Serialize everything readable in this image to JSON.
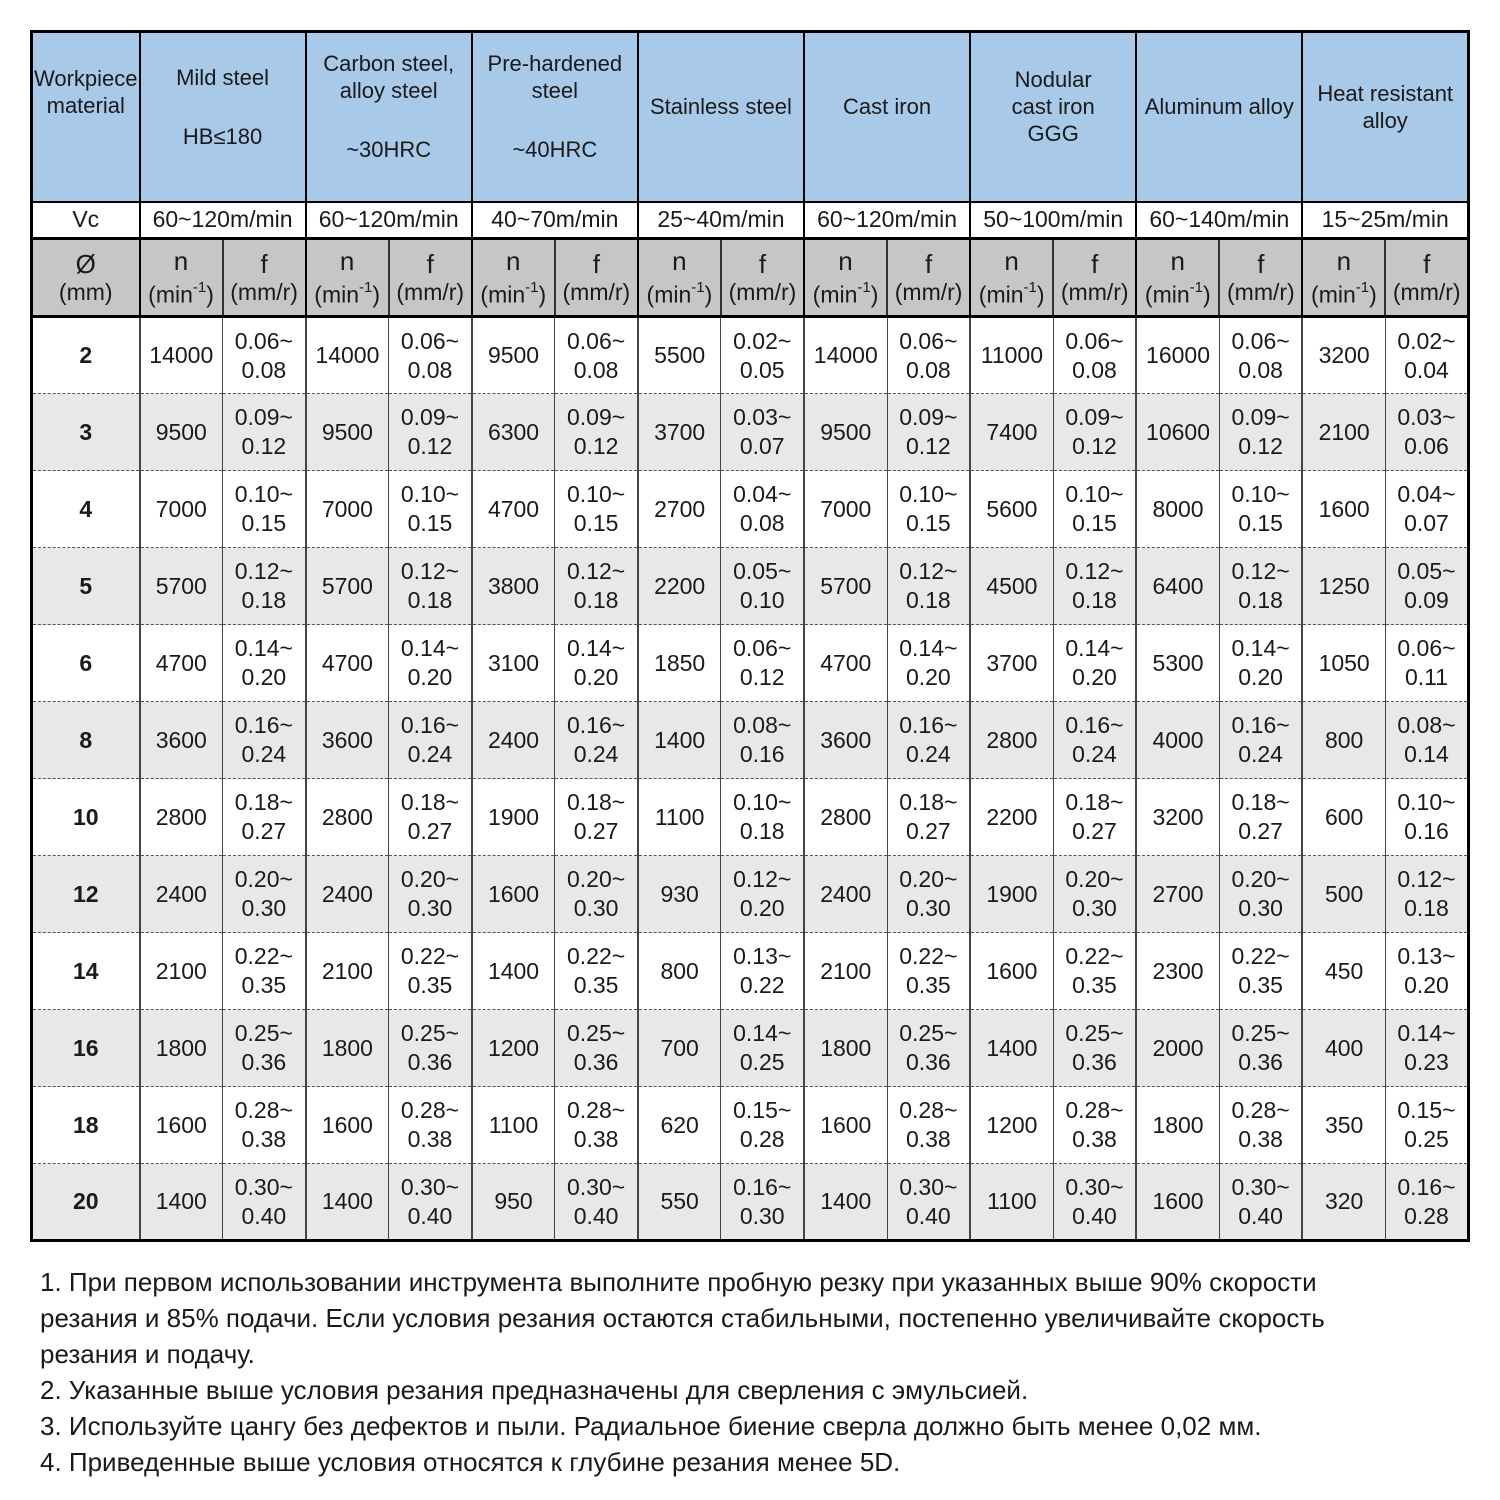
{
  "colors": {
    "header_blue": "#A9C9E9",
    "header_gray": "#C6C6C6",
    "row_alt_gray": "#E8E8E8"
  },
  "table": {
    "corner_label": "Workpiece material",
    "vc_label": "Vc",
    "diameter_symbol": "Ø",
    "diameter_unit": "(mm)",
    "n_label": "n",
    "n_unit_pre": "(min",
    "n_unit_sup": "-1",
    "n_unit_post": ")",
    "f_label": "f",
    "f_unit": "(mm/r)",
    "materials": [
      {
        "name": "Mild steel",
        "sub": "HB≤180",
        "vc": "60~120m/min"
      },
      {
        "name": "Carbon steel,\nalloy steel",
        "sub": "~30HRC",
        "vc": "60~120m/min"
      },
      {
        "name": "Pre-hardened\nsteel",
        "sub": "~40HRC",
        "vc": "40~70m/min"
      },
      {
        "name": "Stainless steel",
        "sub": "",
        "vc": "25~40m/min"
      },
      {
        "name": "Cast iron",
        "sub": "",
        "vc": "60~120m/min"
      },
      {
        "name": "Nodular\ncast iron\nGGG",
        "sub": "",
        "vc": "50~100m/min"
      },
      {
        "name": "Aluminum alloy",
        "sub": "",
        "vc": "60~140m/min"
      },
      {
        "name": "Heat resistant\nalloy",
        "sub": "",
        "vc": "15~25m/min"
      }
    ],
    "rows": [
      {
        "diameter": "2",
        "values": [
          {
            "n": "14000",
            "f": "0.06~0.08"
          },
          {
            "n": "14000",
            "f": "0.06~0.08"
          },
          {
            "n": "9500",
            "f": "0.06~0.08"
          },
          {
            "n": "5500",
            "f": "0.02~0.05"
          },
          {
            "n": "14000",
            "f": "0.06~0.08"
          },
          {
            "n": "11000",
            "f": "0.06~0.08"
          },
          {
            "n": "16000",
            "f": "0.06~0.08"
          },
          {
            "n": "3200",
            "f": "0.02~0.04"
          }
        ]
      },
      {
        "diameter": "3",
        "values": [
          {
            "n": "9500",
            "f": "0.09~0.12"
          },
          {
            "n": "9500",
            "f": "0.09~0.12"
          },
          {
            "n": "6300",
            "f": "0.09~0.12"
          },
          {
            "n": "3700",
            "f": "0.03~0.07"
          },
          {
            "n": "9500",
            "f": "0.09~0.12"
          },
          {
            "n": "7400",
            "f": "0.09~0.12"
          },
          {
            "n": "10600",
            "f": "0.09~0.12"
          },
          {
            "n": "2100",
            "f": "0.03~0.06"
          }
        ]
      },
      {
        "diameter": "4",
        "values": [
          {
            "n": "7000",
            "f": "0.10~0.15"
          },
          {
            "n": "7000",
            "f": "0.10~0.15"
          },
          {
            "n": "4700",
            "f": "0.10~0.15"
          },
          {
            "n": "2700",
            "f": "0.04~0.08"
          },
          {
            "n": "7000",
            "f": "0.10~0.15"
          },
          {
            "n": "5600",
            "f": "0.10~0.15"
          },
          {
            "n": "8000",
            "f": "0.10~0.15"
          },
          {
            "n": "1600",
            "f": "0.04~0.07"
          }
        ]
      },
      {
        "diameter": "5",
        "values": [
          {
            "n": "5700",
            "f": "0.12~0.18"
          },
          {
            "n": "5700",
            "f": "0.12~0.18"
          },
          {
            "n": "3800",
            "f": "0.12~0.18"
          },
          {
            "n": "2200",
            "f": "0.05~0.10"
          },
          {
            "n": "5700",
            "f": "0.12~0.18"
          },
          {
            "n": "4500",
            "f": "0.12~0.18"
          },
          {
            "n": "6400",
            "f": "0.12~0.18"
          },
          {
            "n": "1250",
            "f": "0.05~0.09"
          }
        ]
      },
      {
        "diameter": "6",
        "values": [
          {
            "n": "4700",
            "f": "0.14~0.20"
          },
          {
            "n": "4700",
            "f": "0.14~0.20"
          },
          {
            "n": "3100",
            "f": "0.14~0.20"
          },
          {
            "n": "1850",
            "f": "0.06~0.12"
          },
          {
            "n": "4700",
            "f": "0.14~0.20"
          },
          {
            "n": "3700",
            "f": "0.14~0.20"
          },
          {
            "n": "5300",
            "f": "0.14~0.20"
          },
          {
            "n": "1050",
            "f": "0.06~0.11"
          }
        ]
      },
      {
        "diameter": "8",
        "values": [
          {
            "n": "3600",
            "f": "0.16~0.24"
          },
          {
            "n": "3600",
            "f": "0.16~0.24"
          },
          {
            "n": "2400",
            "f": "0.16~0.24"
          },
          {
            "n": "1400",
            "f": "0.08~0.16"
          },
          {
            "n": "3600",
            "f": "0.16~0.24"
          },
          {
            "n": "2800",
            "f": "0.16~0.24"
          },
          {
            "n": "4000",
            "f": "0.16~0.24"
          },
          {
            "n": "800",
            "f": "0.08~0.14"
          }
        ]
      },
      {
        "diameter": "10",
        "values": [
          {
            "n": "2800",
            "f": "0.18~0.27"
          },
          {
            "n": "2800",
            "f": "0.18~0.27"
          },
          {
            "n": "1900",
            "f": "0.18~0.27"
          },
          {
            "n": "1100",
            "f": "0.10~0.18"
          },
          {
            "n": "2800",
            "f": "0.18~0.27"
          },
          {
            "n": "2200",
            "f": "0.18~0.27"
          },
          {
            "n": "3200",
            "f": "0.18~0.27"
          },
          {
            "n": "600",
            "f": "0.10~0.16"
          }
        ]
      },
      {
        "diameter": "12",
        "values": [
          {
            "n": "2400",
            "f": "0.20~0.30"
          },
          {
            "n": "2400",
            "f": "0.20~0.30"
          },
          {
            "n": "1600",
            "f": "0.20~0.30"
          },
          {
            "n": "930",
            "f": "0.12~0.20"
          },
          {
            "n": "2400",
            "f": "0.20~0.30"
          },
          {
            "n": "1900",
            "f": "0.20~0.30"
          },
          {
            "n": "2700",
            "f": "0.20~0.30"
          },
          {
            "n": "500",
            "f": "0.12~0.18"
          }
        ]
      },
      {
        "diameter": "14",
        "values": [
          {
            "n": "2100",
            "f": "0.22~0.35"
          },
          {
            "n": "2100",
            "f": "0.22~0.35"
          },
          {
            "n": "1400",
            "f": "0.22~0.35"
          },
          {
            "n": "800",
            "f": "0.13~0.22"
          },
          {
            "n": "2100",
            "f": "0.22~0.35"
          },
          {
            "n": "1600",
            "f": "0.22~0.35"
          },
          {
            "n": "2300",
            "f": "0.22~0.35"
          },
          {
            "n": "450",
            "f": "0.13~0.20"
          }
        ]
      },
      {
        "diameter": "16",
        "values": [
          {
            "n": "1800",
            "f": "0.25~0.36"
          },
          {
            "n": "1800",
            "f": "0.25~0.36"
          },
          {
            "n": "1200",
            "f": "0.25~0.36"
          },
          {
            "n": "700",
            "f": "0.14~0.25"
          },
          {
            "n": "1800",
            "f": "0.25~0.36"
          },
          {
            "n": "1400",
            "f": "0.25~0.36"
          },
          {
            "n": "2000",
            "f": "0.25~0.36"
          },
          {
            "n": "400",
            "f": "0.14~0.23"
          }
        ]
      },
      {
        "diameter": "18",
        "values": [
          {
            "n": "1600",
            "f": "0.28~0.38"
          },
          {
            "n": "1600",
            "f": "0.28~0.38"
          },
          {
            "n": "1100",
            "f": "0.28~0.38"
          },
          {
            "n": "620",
            "f": "0.15~0.28"
          },
          {
            "n": "1600",
            "f": "0.28~0.38"
          },
          {
            "n": "1200",
            "f": "0.28~0.38"
          },
          {
            "n": "1800",
            "f": "0.28~0.38"
          },
          {
            "n": "350",
            "f": "0.15~0.25"
          }
        ]
      },
      {
        "diameter": "20",
        "values": [
          {
            "n": "1400",
            "f": "0.30~0.40"
          },
          {
            "n": "1400",
            "f": "0.30~0.40"
          },
          {
            "n": "950",
            "f": "0.30~0.40"
          },
          {
            "n": "550",
            "f": "0.16~0.30"
          },
          {
            "n": "1400",
            "f": "0.30~0.40"
          },
          {
            "n": "1100",
            "f": "0.30~0.40"
          },
          {
            "n": "1600",
            "f": "0.30~0.40"
          },
          {
            "n": "320",
            "f": "0.16~0.28"
          }
        ]
      }
    ]
  },
  "notes": [
    {
      "lines": [
        "1. При первом использовании инструмента выполните пробную резку при указанных выше 90% скорости",
        "резания и 85% подачи. Если условия резания остаются стабильными, постепенно увеличивайте скорость",
        "резания и подачу."
      ]
    },
    {
      "lines": [
        "2. Указанные выше условия резания предназначены для сверления с эмульсией."
      ]
    },
    {
      "lines": [
        "3. Используйте цангу без дефектов и пыли. Радиальное биение сверла должно быть менее 0,02 мм."
      ]
    },
    {
      "lines": [
        "4. Приведенные выше условия относятся к глубине резания менее 5D."
      ]
    }
  ]
}
